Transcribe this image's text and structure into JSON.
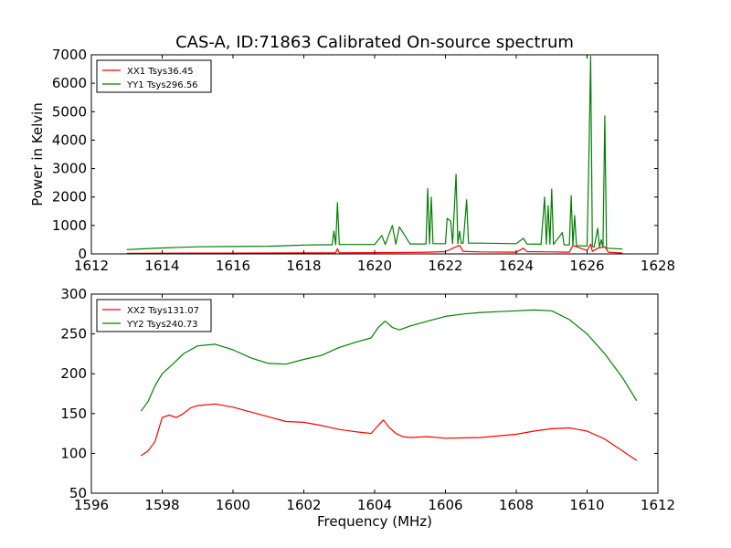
{
  "title": "CAS-A, ID:71863 Calibrated On-source spectrum",
  "colors": {
    "red": "#ff0000",
    "green": "#008000"
  },
  "chart_data": [
    {
      "type": "line",
      "title": "CAS-A, ID:71863 Calibrated On-source spectrum",
      "xlabel": "",
      "ylabel": "Power in Kelvin",
      "xlim": [
        1612,
        1628
      ],
      "ylim": [
        0,
        7000
      ],
      "xticks": [
        1612,
        1614,
        1616,
        1618,
        1620,
        1622,
        1624,
        1626,
        1628
      ],
      "yticks": [
        0,
        1000,
        2000,
        3000,
        4000,
        5000,
        6000,
        7000
      ],
      "legend_position": "top-left",
      "series": [
        {
          "name": "XX1 Tsys36.45",
          "color": "#ff0000",
          "x": [
            1613.0,
            1614.0,
            1615.0,
            1616.0,
            1617.0,
            1618.0,
            1618.9,
            1618.95,
            1619.0,
            1620.0,
            1621.0,
            1621.5,
            1622.0,
            1622.3,
            1622.4,
            1622.5,
            1623.0,
            1624.0,
            1624.2,
            1624.3,
            1625.0,
            1625.5,
            1625.6,
            1626.0,
            1626.1,
            1626.15,
            1626.3,
            1626.5,
            1626.6,
            1627.0
          ],
          "values": [
            20,
            25,
            30,
            30,
            32,
            35,
            40,
            180,
            40,
            45,
            50,
            60,
            80,
            250,
            300,
            90,
            70,
            60,
            200,
            80,
            70,
            60,
            300,
            120,
            350,
            90,
            200,
            250,
            60,
            30
          ]
        },
        {
          "name": "YY1 Tsys296.56",
          "color": "#008000",
          "x": [
            1613.0,
            1613.5,
            1614.0,
            1614.5,
            1615.0,
            1616.0,
            1617.0,
            1617.5,
            1618.0,
            1618.5,
            1618.8,
            1618.85,
            1618.9,
            1618.95,
            1619.0,
            1620.0,
            1620.2,
            1620.3,
            1620.5,
            1620.6,
            1620.7,
            1621.0,
            1621.45,
            1621.5,
            1621.55,
            1621.6,
            1621.65,
            1622.0,
            1622.05,
            1622.15,
            1622.2,
            1622.3,
            1622.35,
            1622.4,
            1622.45,
            1622.5,
            1622.6,
            1622.65,
            1622.7,
            1623.0,
            1624.0,
            1624.2,
            1624.3,
            1624.7,
            1624.8,
            1624.85,
            1624.9,
            1624.95,
            1625.0,
            1625.05,
            1625.3,
            1625.35,
            1625.5,
            1625.55,
            1625.6,
            1625.65,
            1625.7,
            1626.0,
            1626.05,
            1626.1,
            1626.15,
            1626.2,
            1626.3,
            1626.35,
            1626.4,
            1626.45,
            1626.5,
            1626.55,
            1626.6,
            1627.0
          ],
          "values": [
            150,
            180,
            210,
            230,
            250,
            260,
            270,
            290,
            310,
            320,
            320,
            800,
            320,
            1800,
            330,
            330,
            650,
            330,
            1000,
            340,
            950,
            350,
            350,
            2300,
            350,
            2000,
            360,
            360,
            1250,
            1150,
            360,
            2800,
            360,
            800,
            370,
            380,
            1900,
            380,
            380,
            380,
            360,
            550,
            350,
            340,
            2000,
            340,
            1700,
            340,
            2280,
            330,
            750,
            320,
            310,
            2050,
            300,
            1350,
            290,
            280,
            3200,
            6950,
            260,
            240,
            900,
            230,
            500,
            220,
            4850,
            210,
            200,
            170
          ]
        }
      ]
    },
    {
      "type": "line",
      "title": "",
      "xlabel": "Frequency (MHz)",
      "ylabel": "",
      "xlim": [
        1596,
        1612
      ],
      "ylim": [
        50,
        300
      ],
      "xticks": [
        1596,
        1598,
        1600,
        1602,
        1604,
        1606,
        1608,
        1610,
        1612
      ],
      "yticks": [
        50,
        100,
        150,
        200,
        250,
        300
      ],
      "legend_position": "top-left",
      "series": [
        {
          "name": "XX2 Tsys131.07",
          "color": "#ff0000",
          "x": [
            1597.4,
            1597.6,
            1597.8,
            1598.0,
            1598.2,
            1598.4,
            1598.6,
            1598.8,
            1599.0,
            1599.5,
            1600.0,
            1600.5,
            1601.0,
            1601.5,
            1602.0,
            1602.5,
            1603.0,
            1603.5,
            1603.9,
            1604.1,
            1604.25,
            1604.4,
            1604.6,
            1604.8,
            1605.0,
            1605.5,
            1606.0,
            1607.0,
            1608.0,
            1608.5,
            1609.0,
            1609.5,
            1610.0,
            1610.5,
            1611.0,
            1611.4
          ],
          "values": [
            97,
            103,
            115,
            145,
            148,
            145,
            150,
            157,
            160,
            162,
            158,
            152,
            146,
            140,
            139,
            135,
            130,
            127,
            125,
            135,
            142,
            133,
            125,
            121,
            120,
            121,
            119,
            120,
            124,
            128,
            131,
            132,
            128,
            118,
            103,
            91
          ]
        },
        {
          "name": "YY2 Tsys240.73",
          "color": "#008000",
          "x": [
            1597.4,
            1597.6,
            1597.8,
            1598.0,
            1598.3,
            1598.6,
            1599.0,
            1599.5,
            1600.0,
            1600.5,
            1601.0,
            1601.5,
            1602.0,
            1602.5,
            1603.0,
            1603.5,
            1603.9,
            1604.1,
            1604.3,
            1604.5,
            1604.7,
            1605.0,
            1605.5,
            1606.0,
            1606.5,
            1607.0,
            1607.5,
            1608.0,
            1608.5,
            1609.0,
            1609.5,
            1610.0,
            1610.5,
            1611.0,
            1611.4
          ],
          "values": [
            153,
            165,
            185,
            200,
            212,
            225,
            235,
            237,
            230,
            220,
            213,
            212,
            218,
            223,
            233,
            240,
            245,
            258,
            266,
            258,
            255,
            260,
            266,
            272,
            275,
            277,
            278,
            279,
            280,
            279,
            268,
            250,
            225,
            195,
            166
          ]
        }
      ]
    }
  ]
}
